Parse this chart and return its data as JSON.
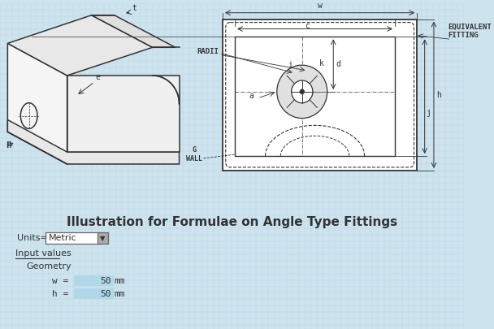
{
  "bg_color": "#cde3ee",
  "grid_color": "#a8c8dc",
  "title": "Illustration for Formulae on Angle Type Fittings",
  "title_fontsize": 11,
  "units_label": "Units=",
  "units_value": "Metric",
  "input_label": "Input values",
  "geometry_label": "Geometry",
  "fields": [
    {
      "label": "w =",
      "value": "50",
      "unit": "mm"
    },
    {
      "label": "h =",
      "value": "50",
      "unit": "mm"
    }
  ],
  "line_color": "#333333",
  "equiv_fitting_text": "EQUIVALENT\nFITTING",
  "radii_text": "RADII",
  "wall_text": "G\nWALL",
  "iso_color": "#555555",
  "white": "#ffffff",
  "field_bg": "#b0d8e8"
}
